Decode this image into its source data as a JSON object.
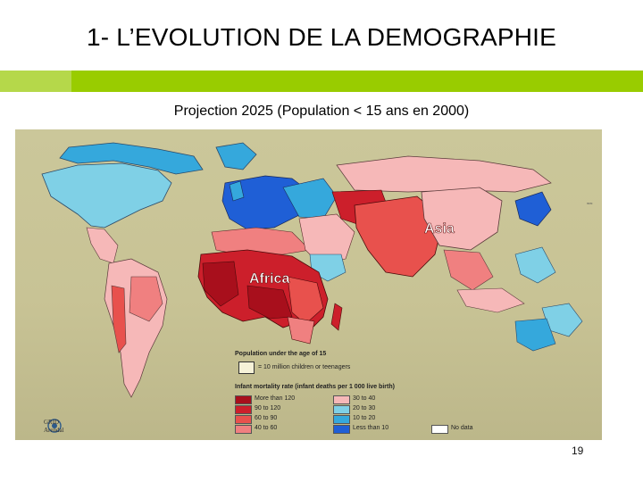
{
  "slide": {
    "title": "1- L’EVOLUTION DE LA DEMOGRAPHIE",
    "subtitle": "Projection 2025 (Population < 15 ans en 2000)",
    "page_number": "19"
  },
  "map": {
    "labels": {
      "asia": "Asia",
      "africa": "Africa"
    },
    "legend": {
      "population_title": "Population under the age of 15",
      "population_unit": "= 10 million children or teenagers",
      "mortality_title": "Infant mortality rate (infant deaths per 1 000 live birth)",
      "classes": [
        {
          "label": "More than 120",
          "color": "#a80f1c"
        },
        {
          "label": "90 to 120",
          "color": "#cc1f2b"
        },
        {
          "label": "60 to 90",
          "color": "#e8514d"
        },
        {
          "label": "40 to 60",
          "color": "#f08080"
        },
        {
          "label": "30 to 40",
          "color": "#f6b8b8"
        },
        {
          "label": "20 to 30",
          "color": "#7fd0e6"
        },
        {
          "label": "10 to 20",
          "color": "#35a8dc"
        },
        {
          "label": "Less than 10",
          "color": "#1f5fd6"
        },
        {
          "label": "No data",
          "color": "#ffffff"
        }
      ]
    },
    "organisation": {
      "line1": "GRID",
      "line2": "Arendal"
    }
  }
}
